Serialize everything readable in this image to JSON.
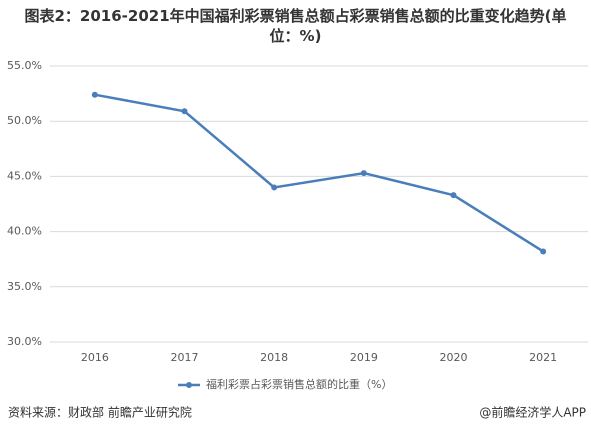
{
  "chart_data": {
    "type": "line",
    "title": "图表2：2016-2021年中国福利彩票销售总额占彩票销售总额的比重变化趋势(单位：%)",
    "categories": [
      "2016",
      "2017",
      "2018",
      "2019",
      "2020",
      "2021"
    ],
    "series": [
      {
        "name": "福利彩票占彩票销售总额的比重（%）",
        "color": "#4a7ebb",
        "values": [
          52.4,
          50.9,
          44.0,
          45.3,
          43.3,
          38.2
        ]
      }
    ],
    "ylim": [
      30,
      55
    ],
    "yticks": [
      {
        "value": 30,
        "label": "30.0%"
      },
      {
        "value": 35,
        "label": "35.0%"
      },
      {
        "value": 40,
        "label": "40.0%"
      },
      {
        "value": 45,
        "label": "45.0%"
      },
      {
        "value": 50,
        "label": "50.0%"
      },
      {
        "value": 55,
        "label": "55.0%"
      }
    ],
    "grid": true,
    "legend": "bottom",
    "source": "资料来源：财政部 前瞻产业研究院",
    "credit": "@前瞻经济学人APP"
  }
}
